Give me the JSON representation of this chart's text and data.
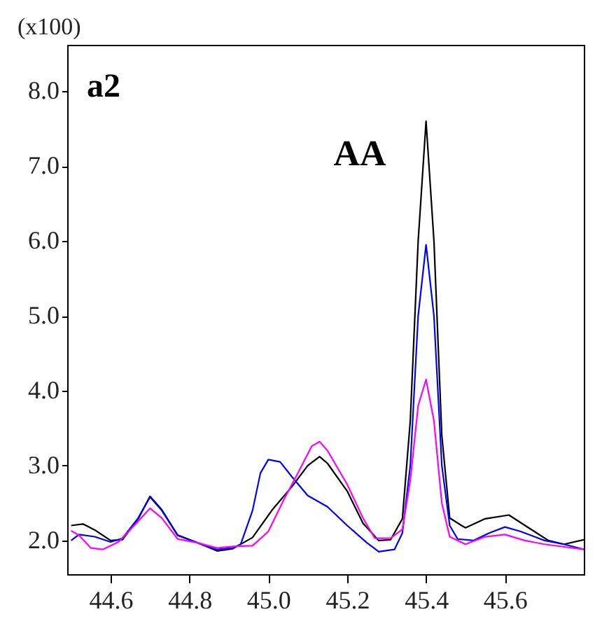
{
  "chart_data": {
    "type": "line",
    "ylabel": "(x100)",
    "annotations": [
      "a2",
      "AA"
    ],
    "xlim": [
      44.49,
      45.8
    ],
    "ylim": [
      1.55,
      8.62
    ],
    "xticks": [
      44.6,
      44.8,
      {
        "value": 45,
        "label": "45.0"
      },
      45.2,
      45.4,
      45.6
    ],
    "yticks": [
      {
        "value": 2,
        "label": "2.0"
      },
      {
        "value": 3,
        "label": "3.0"
      },
      {
        "value": 4,
        "label": "4.0"
      },
      {
        "value": 5,
        "label": "5.0"
      },
      {
        "value": 6,
        "label": "6.0"
      },
      {
        "value": 7,
        "label": "7.0"
      },
      {
        "value": 8,
        "label": "8.0"
      }
    ],
    "grid": false,
    "series": [
      {
        "color": "#000000",
        "x": [
          44.5,
          44.53,
          44.56,
          44.6,
          44.63,
          44.67,
          44.7,
          44.73,
          44.77,
          44.82,
          44.87,
          44.91,
          44.96,
          45.01,
          45.06,
          45.1,
          45.13,
          45.15,
          45.2,
          45.24,
          45.28,
          45.31,
          45.34,
          45.36,
          45.38,
          45.4,
          45.42,
          45.44,
          45.46,
          45.49,
          45.5,
          45.55,
          45.61,
          45.66,
          45.71,
          45.75,
          45.8
        ],
        "values": [
          2.2,
          2.22,
          2.14,
          2.0,
          2.01,
          2.29,
          2.59,
          2.41,
          2.07,
          1.97,
          1.86,
          1.89,
          2.04,
          2.41,
          2.72,
          3.0,
          3.12,
          3.03,
          2.66,
          2.23,
          2.0,
          2.01,
          2.29,
          3.6,
          6.0,
          7.6,
          6.0,
          3.4,
          2.3,
          2.2,
          2.17,
          2.29,
          2.34,
          2.17,
          2.0,
          1.95,
          2.01
        ]
      },
      {
        "color": "#0000ff",
        "x": [
          44.5,
          44.52,
          44.56,
          44.6,
          44.63,
          44.67,
          44.7,
          44.73,
          44.77,
          44.82,
          44.87,
          44.91,
          44.93,
          44.96,
          44.98,
          45.0,
          45.03,
          45.06,
          45.1,
          45.15,
          45.2,
          45.25,
          45.28,
          45.32,
          45.34,
          45.36,
          45.38,
          45.4,
          45.42,
          45.44,
          45.46,
          45.48,
          45.52,
          45.56,
          45.6,
          45.64,
          45.7,
          45.75,
          45.8
        ],
        "values": [
          2.0,
          2.08,
          2.05,
          1.98,
          2.03,
          2.3,
          2.58,
          2.4,
          2.07,
          1.97,
          1.88,
          1.9,
          1.95,
          2.4,
          2.9,
          3.08,
          3.05,
          2.85,
          2.6,
          2.45,
          2.2,
          1.97,
          1.85,
          1.88,
          2.1,
          3.0,
          5.0,
          5.95,
          5.0,
          3.0,
          2.2,
          2.02,
          2.0,
          2.1,
          2.18,
          2.12,
          2.0,
          1.95,
          1.88
        ]
      },
      {
        "color": "#ff00ff",
        "x": [
          44.5,
          44.52,
          44.55,
          44.58,
          44.62,
          44.66,
          44.7,
          44.73,
          44.77,
          44.82,
          44.87,
          44.91,
          44.96,
          45.0,
          45.04,
          45.08,
          45.11,
          45.13,
          45.15,
          45.2,
          45.24,
          45.27,
          45.31,
          45.34,
          45.36,
          45.38,
          45.4,
          45.42,
          45.44,
          45.46,
          45.5,
          45.55,
          45.6,
          45.65,
          45.7,
          45.8
        ],
        "values": [
          2.13,
          2.07,
          1.9,
          1.88,
          1.98,
          2.2,
          2.43,
          2.3,
          2.02,
          1.97,
          1.9,
          1.92,
          1.93,
          2.12,
          2.55,
          2.95,
          3.26,
          3.32,
          3.2,
          2.75,
          2.3,
          2.03,
          2.03,
          2.15,
          2.8,
          3.8,
          4.15,
          3.6,
          2.5,
          2.05,
          1.95,
          2.05,
          2.08,
          2.0,
          1.95,
          1.88
        ]
      }
    ]
  }
}
